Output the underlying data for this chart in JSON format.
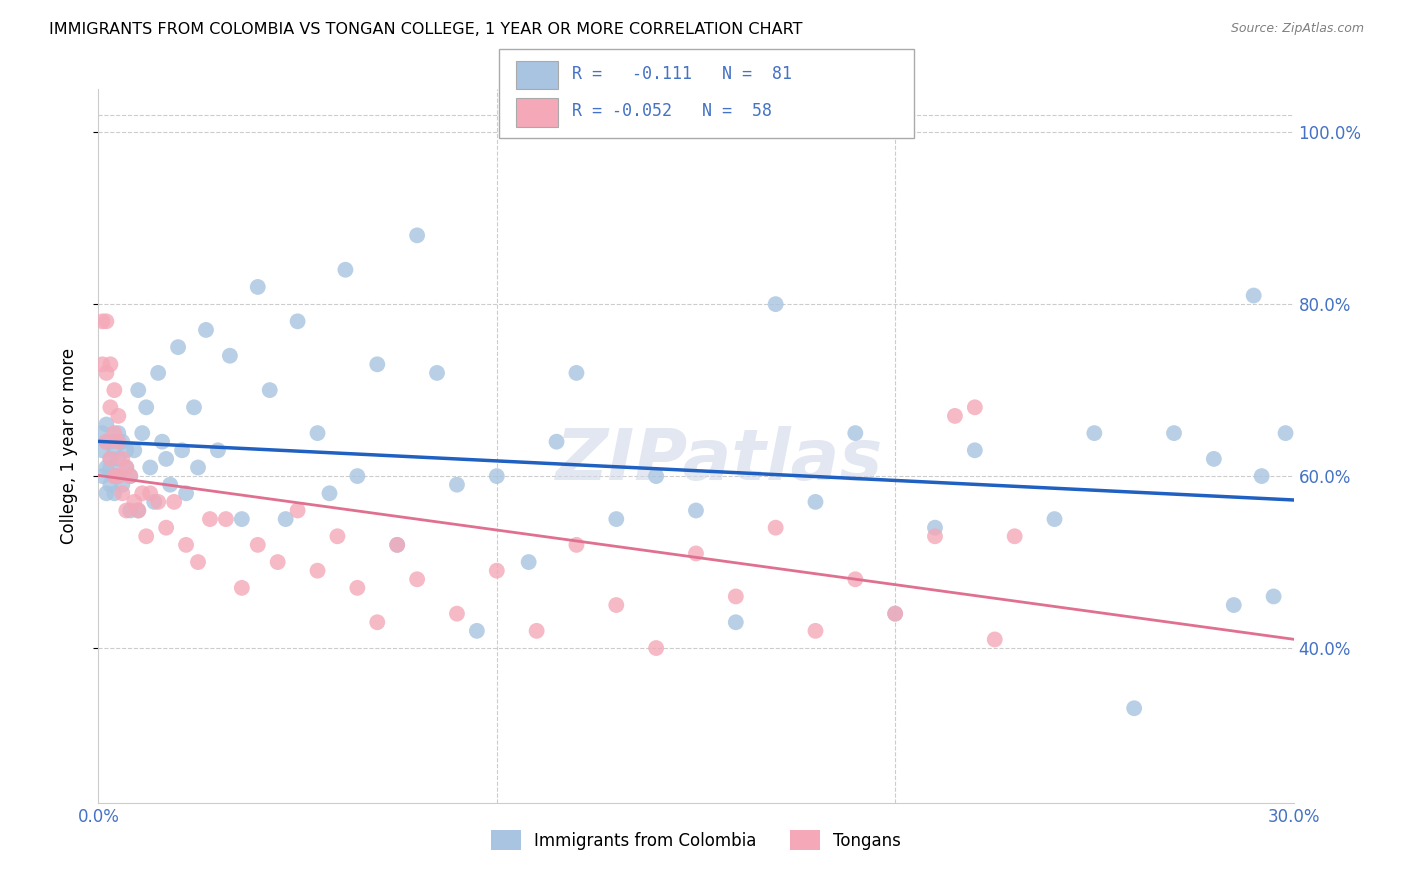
{
  "title": "IMMIGRANTS FROM COLOMBIA VS TONGAN COLLEGE, 1 YEAR OR MORE CORRELATION CHART",
  "source": "Source: ZipAtlas.com",
  "ylabel": "College, 1 year or more",
  "xlim": [
    0.0,
    0.3
  ],
  "ylim": [
    0.22,
    1.05
  ],
  "ytick_vals": [
    0.4,
    0.6,
    0.8,
    1.0
  ],
  "ytick_labels": [
    "40.0%",
    "60.0%",
    "80.0%",
    "100.0%"
  ],
  "xtick_vals": [
    0.0,
    0.1,
    0.2,
    0.3
  ],
  "xtick_labels": [
    "0.0%",
    "",
    "",
    "30.0%"
  ],
  "colombia_R": -0.111,
  "colombia_N": 81,
  "tongan_R": -0.052,
  "tongan_N": 58,
  "colombia_color": "#a8c4e0",
  "tongan_color": "#f4a8b8",
  "colombia_line_color": "#2060c0",
  "tongan_line_color": "#e07090",
  "grid_color": "#cccccc",
  "watermark": "ZIPatlas",
  "colombia_x": [
    0.001,
    0.001,
    0.001,
    0.002,
    0.002,
    0.002,
    0.002,
    0.003,
    0.003,
    0.003,
    0.003,
    0.004,
    0.004,
    0.004,
    0.005,
    0.005,
    0.005,
    0.006,
    0.006,
    0.007,
    0.007,
    0.008,
    0.008,
    0.009,
    0.01,
    0.01,
    0.011,
    0.012,
    0.013,
    0.014,
    0.015,
    0.016,
    0.017,
    0.018,
    0.02,
    0.021,
    0.022,
    0.024,
    0.025,
    0.027,
    0.03,
    0.033,
    0.036,
    0.04,
    0.043,
    0.047,
    0.05,
    0.055,
    0.058,
    0.062,
    0.065,
    0.07,
    0.075,
    0.08,
    0.085,
    0.09,
    0.095,
    0.1,
    0.108,
    0.115,
    0.12,
    0.13,
    0.14,
    0.15,
    0.16,
    0.17,
    0.18,
    0.19,
    0.2,
    0.21,
    0.22,
    0.24,
    0.25,
    0.26,
    0.27,
    0.28,
    0.285,
    0.29,
    0.292,
    0.295,
    0.298
  ],
  "colombia_y": [
    0.63,
    0.6,
    0.65,
    0.61,
    0.64,
    0.58,
    0.66,
    0.62,
    0.59,
    0.64,
    0.61,
    0.63,
    0.6,
    0.58,
    0.62,
    0.65,
    0.6,
    0.59,
    0.64,
    0.61,
    0.63,
    0.6,
    0.56,
    0.63,
    0.7,
    0.56,
    0.65,
    0.68,
    0.61,
    0.57,
    0.72,
    0.64,
    0.62,
    0.59,
    0.75,
    0.63,
    0.58,
    0.68,
    0.61,
    0.77,
    0.63,
    0.74,
    0.55,
    0.82,
    0.7,
    0.55,
    0.78,
    0.65,
    0.58,
    0.84,
    0.6,
    0.73,
    0.52,
    0.88,
    0.72,
    0.59,
    0.42,
    0.6,
    0.5,
    0.64,
    0.72,
    0.55,
    0.6,
    0.56,
    0.43,
    0.8,
    0.57,
    0.65,
    0.44,
    0.54,
    0.63,
    0.55,
    0.65,
    0.33,
    0.65,
    0.62,
    0.45,
    0.81,
    0.6,
    0.46,
    0.65
  ],
  "tongan_x": [
    0.001,
    0.001,
    0.002,
    0.002,
    0.002,
    0.003,
    0.003,
    0.003,
    0.004,
    0.004,
    0.004,
    0.005,
    0.005,
    0.005,
    0.006,
    0.006,
    0.007,
    0.007,
    0.008,
    0.009,
    0.01,
    0.011,
    0.012,
    0.013,
    0.015,
    0.017,
    0.019,
    0.022,
    0.025,
    0.028,
    0.032,
    0.036,
    0.04,
    0.045,
    0.05,
    0.055,
    0.06,
    0.065,
    0.07,
    0.075,
    0.08,
    0.09,
    0.1,
    0.11,
    0.12,
    0.13,
    0.14,
    0.15,
    0.16,
    0.17,
    0.18,
    0.19,
    0.2,
    0.21,
    0.215,
    0.22,
    0.225,
    0.23
  ],
  "tongan_y": [
    0.78,
    0.73,
    0.78,
    0.72,
    0.64,
    0.68,
    0.62,
    0.73,
    0.65,
    0.6,
    0.7,
    0.64,
    0.6,
    0.67,
    0.62,
    0.58,
    0.61,
    0.56,
    0.6,
    0.57,
    0.56,
    0.58,
    0.53,
    0.58,
    0.57,
    0.54,
    0.57,
    0.52,
    0.5,
    0.55,
    0.55,
    0.47,
    0.52,
    0.5,
    0.56,
    0.49,
    0.53,
    0.47,
    0.43,
    0.52,
    0.48,
    0.44,
    0.49,
    0.42,
    0.52,
    0.45,
    0.4,
    0.51,
    0.46,
    0.54,
    0.42,
    0.48,
    0.44,
    0.53,
    0.67,
    0.68,
    0.41,
    0.53
  ]
}
